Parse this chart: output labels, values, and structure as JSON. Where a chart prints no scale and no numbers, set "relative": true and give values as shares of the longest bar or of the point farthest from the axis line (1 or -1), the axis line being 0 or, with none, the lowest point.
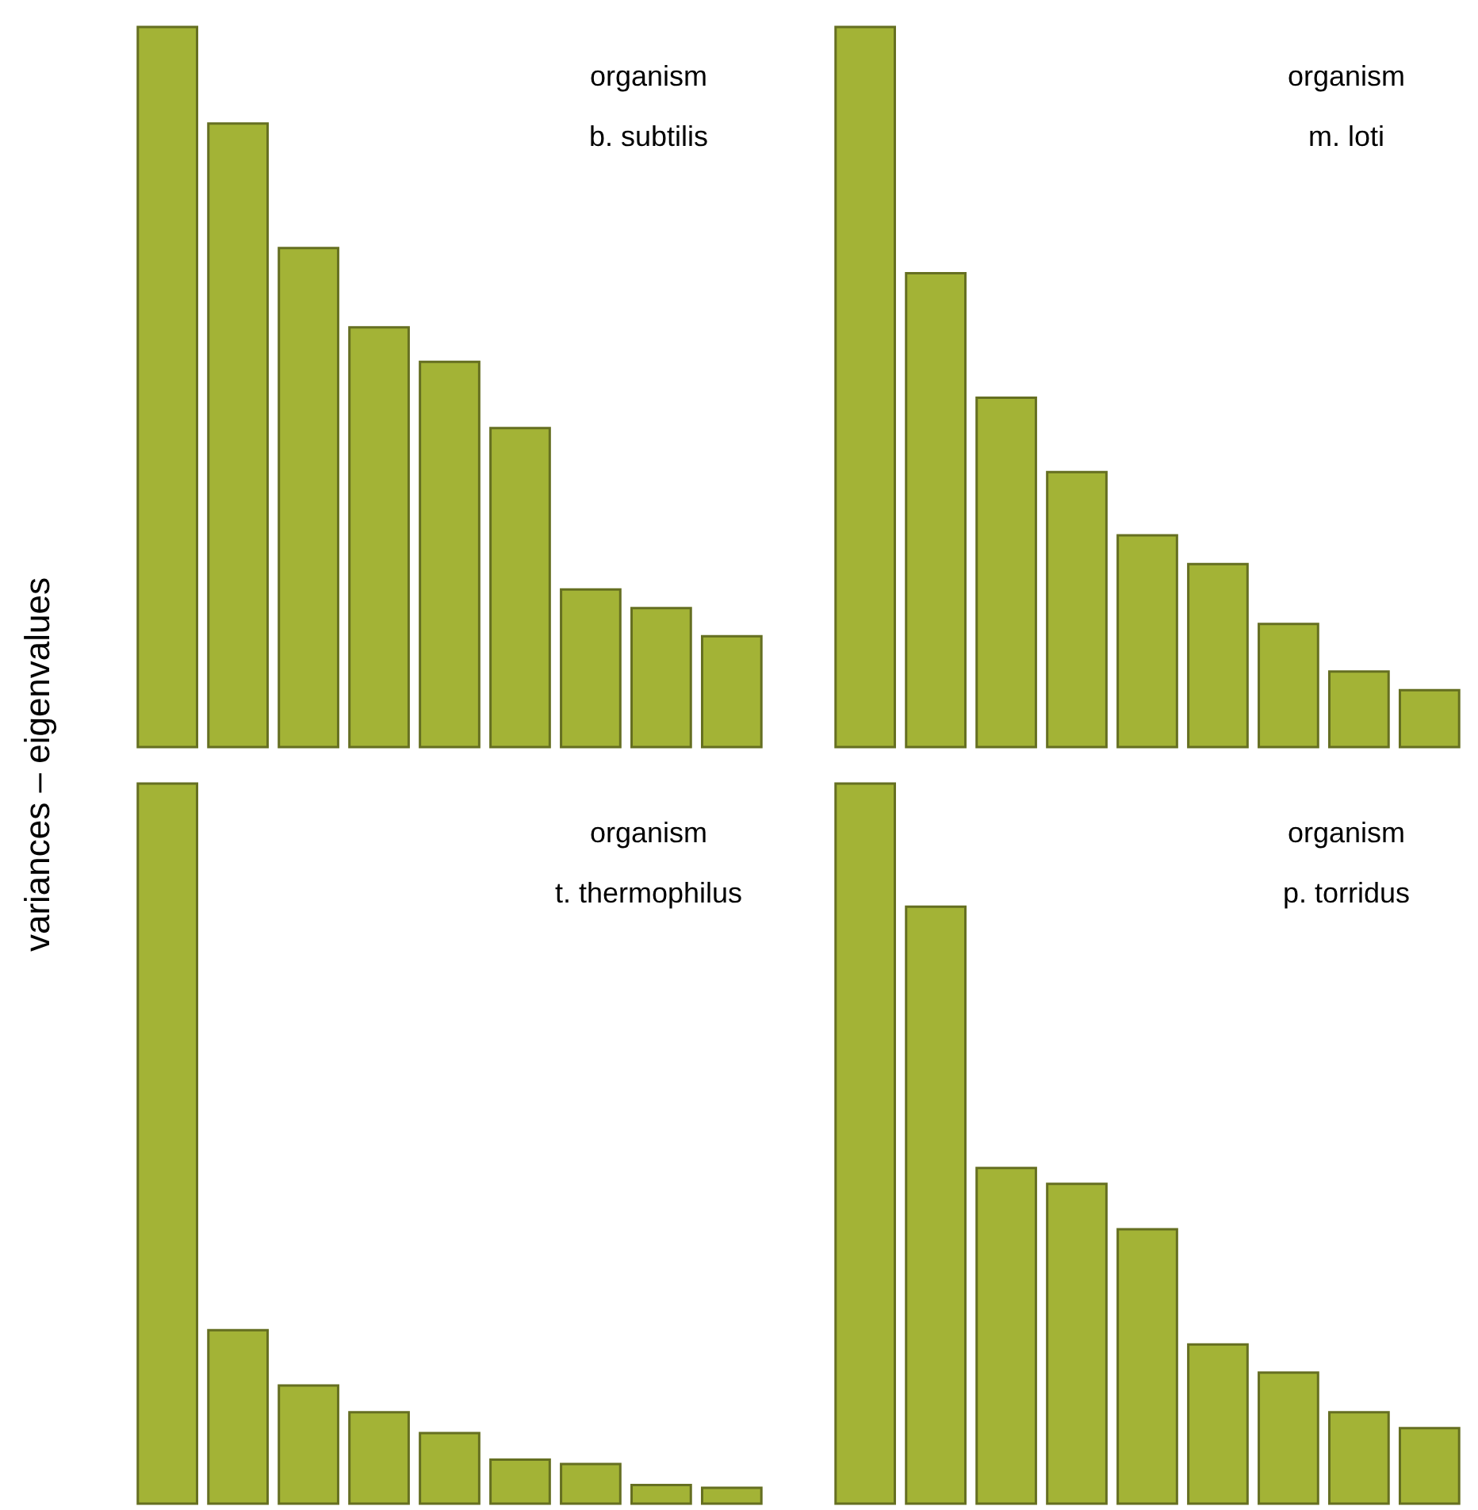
{
  "chart_data": [
    {
      "type": "bar",
      "relative": true,
      "ylabel": "variances – eigenvalues",
      "annotations": [
        "organism",
        "b. subtilis"
      ],
      "categories": [
        null,
        null,
        null,
        null,
        null,
        null,
        null,
        null,
        null
      ],
      "series": [
        {
          "color": "#a3b336",
          "values": [
            1,
            0.866,
            0.693,
            0.583,
            0.535,
            0.443,
            0.219,
            0.193,
            0.154
          ]
        }
      ]
    },
    {
      "type": "bar",
      "relative": true,
      "annotations": [
        "organism",
        "m. loti"
      ],
      "categories": [
        null,
        null,
        null,
        null,
        null,
        null,
        null,
        null,
        null
      ],
      "series": [
        {
          "color": "#a3b336",
          "values": [
            1,
            0.658,
            0.485,
            0.382,
            0.294,
            0.254,
            0.171,
            0.105,
            0.079
          ]
        }
      ]
    },
    {
      "type": "bar",
      "relative": true,
      "annotations": [
        "organism",
        "t. thermophilus"
      ],
      "categories": [
        null,
        null,
        null,
        null,
        null,
        null,
        null,
        null,
        null
      ],
      "series": [
        {
          "color": "#a3b336",
          "values": [
            1,
            0.241,
            0.164,
            0.127,
            0.098,
            0.061,
            0.055,
            0.026,
            0.022
          ]
        }
      ]
    },
    {
      "type": "bar",
      "relative": true,
      "annotations": [
        "organism",
        "p. torridus"
      ],
      "categories": [
        null,
        null,
        null,
        null,
        null,
        null,
        null,
        null,
        null
      ],
      "series": [
        {
          "color": "#a3b336",
          "values": [
            1,
            0.829,
            0.466,
            0.444,
            0.381,
            0.221,
            0.182,
            0.127,
            0.105
          ]
        }
      ]
    }
  ]
}
